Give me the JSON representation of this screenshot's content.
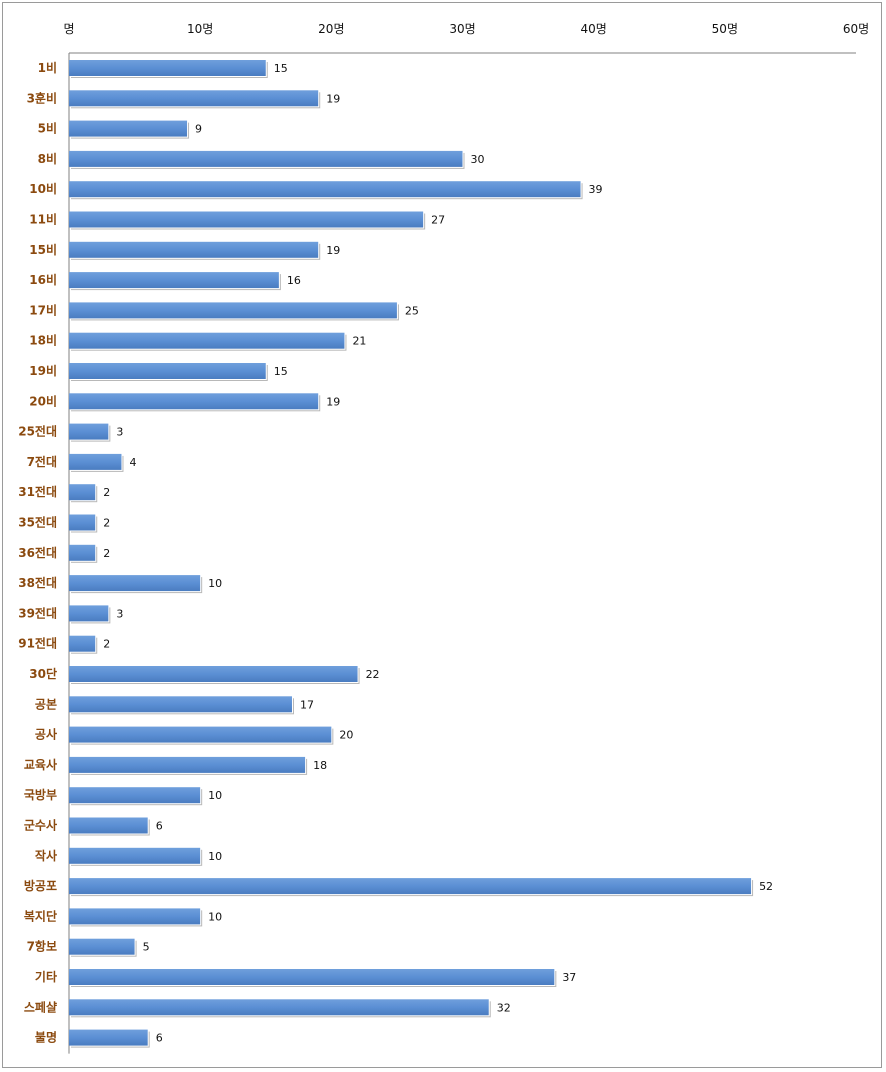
{
  "chart_data": {
    "type": "bar",
    "orientation": "horizontal",
    "title": "",
    "xlabel": "",
    "ylabel": "",
    "x_tick_labels": [
      "명",
      "10명",
      "20명",
      "30명",
      "40명",
      "50명",
      "60명"
    ],
    "x_ticks": [
      0,
      10,
      20,
      30,
      40,
      50,
      60
    ],
    "xlim": [
      0,
      60
    ],
    "x_axis_position": "top",
    "grid": false,
    "legend": "none",
    "bar_color": "#5b8fd4",
    "label_color": "#8b4a0f",
    "categories": [
      "1비",
      "3훈비",
      "5비",
      "8비",
      "10비",
      "11비",
      "15비",
      "16비",
      "17비",
      "18비",
      "19비",
      "20비",
      "25전대",
      "7전대",
      "31전대",
      "35전대",
      "36전대",
      "38전대",
      "39전대",
      "91전대",
      "30단",
      "공본",
      "공사",
      "교육사",
      "국방부",
      "군수사",
      "작사",
      "방공포",
      "복지단",
      "7항보",
      "기타",
      "스페샬",
      "불명"
    ],
    "values": [
      15,
      19,
      9,
      30,
      39,
      27,
      19,
      16,
      25,
      21,
      15,
      19,
      3,
      4,
      2,
      2,
      2,
      10,
      3,
      2,
      22,
      17,
      20,
      18,
      10,
      6,
      10,
      52,
      10,
      5,
      37,
      32,
      6
    ]
  }
}
